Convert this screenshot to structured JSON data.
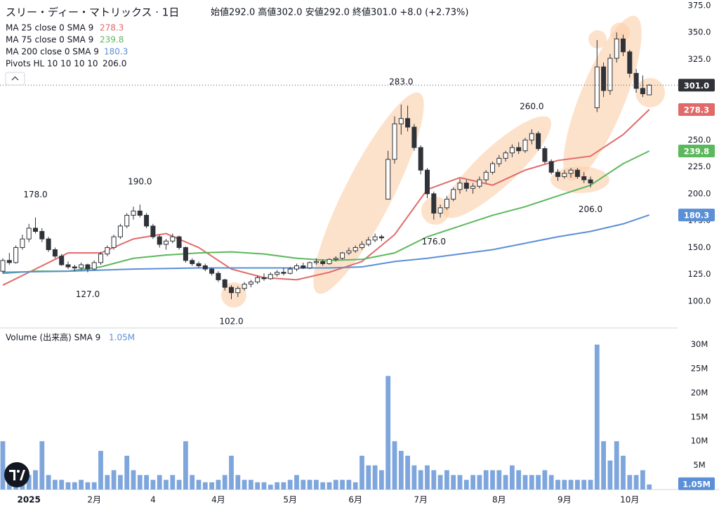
{
  "chart_data": {
    "type": "candlestick",
    "title": "スリー・ディー・マトリックス · 1日",
    "ohlc_text": "始値292.0 高値302.0 安値292.0 終値301.0 +8.0 (+2.73%)",
    "up_color": "#ffffff",
    "down_color": "#2f3238",
    "wick_color": "#2f3238",
    "ylim": [
      76.5,
      380.2
    ],
    "yticks": [
      {
        "value": 100,
        "label": "100.0"
      },
      {
        "value": 125,
        "label": "125.0"
      },
      {
        "value": 150,
        "label": "150.0"
      },
      {
        "value": 175,
        "label": "175.0"
      },
      {
        "value": 200,
        "label": "200.0"
      },
      {
        "value": 225,
        "label": "225.0"
      },
      {
        "value": 250,
        "label": "250.0"
      },
      {
        "value": 275,
        "label": "275.0"
      },
      {
        "value": 300,
        "label": "300.0"
      },
      {
        "value": 325,
        "label": "325.0"
      },
      {
        "value": 350,
        "label": "350.0"
      },
      {
        "value": 375,
        "label": "375.0"
      }
    ],
    "grid": false,
    "close_label": "301.0",
    "categories": [
      null,
      null,
      null,
      null,
      "2025",
      null,
      null,
      null,
      null,
      null,
      null,
      null,
      null,
      null,
      "2月",
      null,
      null,
      null,
      null,
      null,
      null,
      null,
      null,
      "4",
      null,
      null,
      null,
      null,
      null,
      null,
      null,
      null,
      null,
      "4月",
      null,
      null,
      null,
      null,
      null,
      null,
      null,
      null,
      null,
      null,
      "5月",
      null,
      null,
      null,
      null,
      null,
      null,
      null,
      null,
      null,
      "6月",
      null,
      null,
      null,
      null,
      null,
      null,
      null,
      null,
      null,
      "7月",
      null,
      null,
      null,
      null,
      null,
      null,
      null,
      null,
      null,
      null,
      null,
      "8月",
      null,
      null,
      null,
      null,
      null,
      null,
      null,
      null,
      null,
      "9月",
      null,
      null,
      null,
      null,
      null,
      null,
      null,
      null,
      null,
      "10月",
      null,
      null,
      null
    ],
    "open": [
      128,
      138,
      136,
      150,
      158,
      168,
      165,
      158,
      148,
      142,
      134,
      132,
      131,
      134,
      130,
      136,
      144,
      150,
      160,
      170,
      180,
      184,
      180,
      170,
      160,
      153,
      156,
      160,
      150,
      138,
      135,
      133,
      130,
      126,
      120,
      113,
      108,
      112,
      116,
      118,
      122,
      121,
      125,
      127,
      126,
      130,
      133,
      131,
      136,
      137,
      135,
      139,
      140,
      145,
      147,
      150,
      153,
      157,
      160,
      195,
      232,
      265,
      270,
      262,
      243,
      222,
      200,
      182,
      187,
      195,
      204,
      210,
      205,
      207,
      213,
      220,
      228,
      233,
      238,
      243,
      240,
      250,
      256,
      242,
      230,
      220,
      216,
      219,
      222,
      216,
      213,
      280,
      318,
      296,
      326,
      344,
      332,
      312,
      298,
      292
    ],
    "high": [
      140,
      145,
      152,
      162,
      172,
      178,
      168,
      160,
      150,
      144,
      137,
      134,
      136,
      135,
      138,
      146,
      152,
      162,
      172,
      182,
      188,
      190,
      182,
      172,
      162,
      158,
      163,
      161,
      151,
      140,
      137,
      135,
      131,
      128,
      121,
      115,
      114,
      118,
      120,
      124,
      126,
      127,
      129,
      131,
      132,
      135,
      136,
      137,
      140,
      139,
      140,
      142,
      146,
      150,
      152,
      156,
      160,
      163,
      162,
      240,
      272,
      283,
      282,
      265,
      245,
      224,
      202,
      190,
      198,
      206,
      214,
      213,
      210,
      216,
      222,
      230,
      236,
      240,
      246,
      248,
      252,
      260,
      258,
      244,
      232,
      223,
      222,
      224,
      224,
      220,
      216,
      343,
      322,
      330,
      350,
      348,
      334,
      316,
      310,
      302
    ],
    "low": [
      126,
      134,
      135,
      148,
      155,
      163,
      155,
      146,
      140,
      133,
      130,
      128,
      129,
      127,
      129,
      134,
      142,
      148,
      158,
      168,
      176,
      178,
      168,
      158,
      150,
      148,
      154,
      148,
      136,
      133,
      131,
      128,
      124,
      118,
      110,
      102,
      104,
      110,
      113,
      116,
      119,
      120,
      123,
      124,
      125,
      128,
      130,
      130,
      134,
      133,
      134,
      137,
      139,
      143,
      145,
      148,
      151,
      155,
      156,
      195,
      228,
      255,
      258,
      240,
      218,
      196,
      176,
      178,
      185,
      193,
      200,
      202,
      200,
      205,
      210,
      218,
      225,
      230,
      234,
      237,
      238,
      246,
      240,
      228,
      218,
      212,
      214,
      215,
      214,
      210,
      206,
      276,
      290,
      292,
      322,
      328,
      308,
      294,
      290,
      292
    ],
    "close": [
      138,
      136,
      150,
      158,
      168,
      165,
      158,
      148,
      142,
      134,
      132,
      131,
      134,
      130,
      136,
      144,
      150,
      160,
      170,
      180,
      184,
      180,
      170,
      160,
      153,
      156,
      160,
      150,
      138,
      135,
      133,
      130,
      126,
      120,
      113,
      108,
      112,
      116,
      118,
      122,
      121,
      125,
      127,
      126,
      130,
      133,
      131,
      136,
      137,
      135,
      139,
      140,
      145,
      147,
      150,
      153,
      157,
      160,
      159,
      232,
      265,
      270,
      262,
      243,
      222,
      200,
      182,
      187,
      195,
      204,
      210,
      205,
      207,
      213,
      220,
      228,
      233,
      238,
      243,
      240,
      250,
      256,
      242,
      230,
      220,
      216,
      219,
      222,
      216,
      213,
      210,
      318,
      296,
      326,
      344,
      332,
      312,
      298,
      293,
      301
    ],
    "ma": [
      {
        "name": "MA 25 close 0 SMA 9",
        "color": "#e06a6a",
        "legend_value": "278.3",
        "x": [
          0,
          5,
          10,
          15,
          20,
          25,
          30,
          35,
          40,
          45,
          50,
          55,
          60,
          65,
          70,
          75,
          80,
          85,
          90,
          95,
          99
        ],
        "values": [
          115,
          130,
          145,
          145,
          158,
          163,
          150,
          130,
          122,
          120,
          127,
          137,
          162,
          204,
          215,
          208,
          222,
          231,
          235,
          255,
          278.3
        ]
      },
      {
        "name": "MA 75 close 0 SMA 9",
        "color": "#5cb85c",
        "legend_value": "239.8",
        "x": [
          0,
          5,
          10,
          15,
          20,
          25,
          30,
          35,
          40,
          45,
          50,
          55,
          60,
          65,
          70,
          75,
          80,
          85,
          90,
          95,
          99
        ],
        "values": [
          126,
          128,
          128,
          132,
          140,
          143,
          145,
          146,
          144,
          140,
          138,
          139,
          145,
          160,
          170,
          180,
          188,
          198,
          208,
          228,
          239.8
        ]
      },
      {
        "name": "MA 200 close 0 SMA 9",
        "color": "#5b8fd6",
        "legend_value": "180.3",
        "x": [
          0,
          10,
          20,
          30,
          40,
          50,
          55,
          60,
          65,
          70,
          75,
          80,
          85,
          90,
          95,
          99
        ],
        "values": [
          127,
          128,
          130,
          131,
          131,
          131,
          132,
          137,
          140,
          144,
          148,
          154,
          160,
          165,
          172,
          180.3
        ]
      }
    ],
    "pivots_name": "Pivots HL 10 10 10 10",
    "pivots_value": "206.0",
    "pivots": [
      {
        "index": 5,
        "kind": "high",
        "value": 178,
        "label": "178.0"
      },
      {
        "index": 13,
        "kind": "low",
        "value": 127,
        "label": "127.0"
      },
      {
        "index": 21,
        "kind": "high",
        "value": 190,
        "label": "190.0"
      },
      {
        "index": 35,
        "kind": "low",
        "value": 102,
        "label": "102.0"
      },
      {
        "index": 61,
        "kind": "high",
        "value": 283,
        "label": "283.0"
      },
      {
        "index": 66,
        "kind": "low",
        "value": 176,
        "label": "176.0"
      },
      {
        "index": 81,
        "kind": "high",
        "value": 260,
        "label": "260.0"
      },
      {
        "index": 90,
        "kind": "low",
        "value": 206,
        "label": "206.0"
      }
    ],
    "volume": {
      "name": "Volume (出来高) SMA 9",
      "legend_value": "1.05M",
      "color": "#7ea6dc",
      "ylim": [
        0,
        33
      ],
      "yticks": [
        {
          "value": 5,
          "label": "5M"
        },
        {
          "value": 10,
          "label": "10M"
        },
        {
          "value": 15,
          "label": "15M"
        },
        {
          "value": 20,
          "label": "20M"
        },
        {
          "value": 25,
          "label": "25M"
        },
        {
          "value": 30,
          "label": "30M"
        }
      ],
      "values": [
        10,
        4,
        3,
        2,
        3,
        4,
        10,
        3,
        2,
        2,
        1.5,
        1.5,
        2,
        1.5,
        1.5,
        8,
        3,
        4,
        3,
        7,
        4,
        3,
        3,
        2,
        3,
        2,
        3,
        2,
        10,
        3,
        2,
        1.5,
        1.5,
        2,
        3,
        7,
        3,
        2,
        2,
        1.5,
        1.5,
        1,
        1.5,
        1.5,
        2,
        3,
        2,
        2,
        2,
        1.5,
        1.5,
        2,
        2,
        2,
        1.5,
        7,
        5,
        5,
        4,
        23.5,
        10,
        8,
        7,
        5,
        4,
        5,
        4,
        3,
        4,
        3,
        3,
        2,
        3,
        3,
        4,
        4,
        4,
        3,
        5,
        4,
        3,
        3,
        3,
        4,
        3,
        2,
        2,
        2,
        2,
        2,
        2,
        30,
        10,
        6,
        10,
        7,
        3,
        3,
        4,
        1.05
      ]
    }
  }
}
